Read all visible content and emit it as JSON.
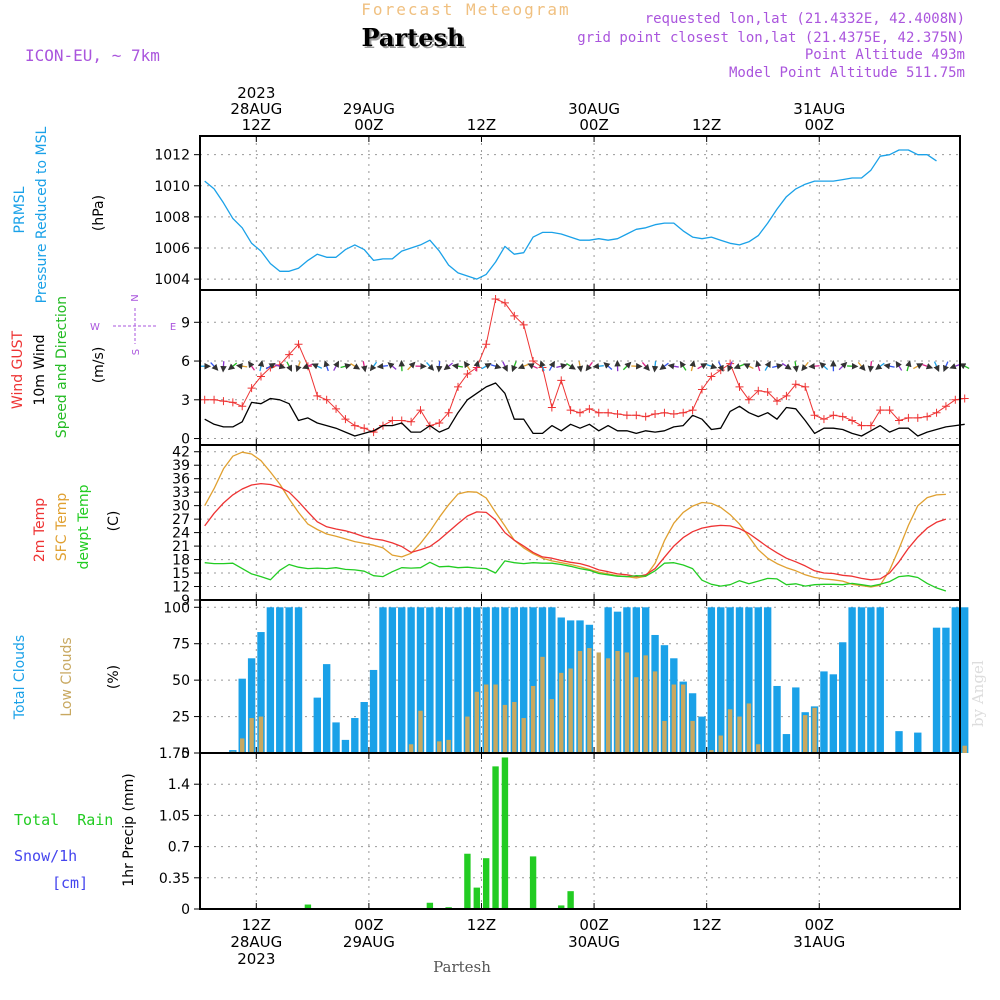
{
  "header": {
    "product": "Forecast Meteogram",
    "location": "Partesh",
    "model": "ICON-EU, ~ 7km",
    "requested": "requested lon,lat (21.4332E, 42.4008N)",
    "grid_point": "grid point closest lon,lat (21.4375E, 42.375N)",
    "point_altitude": "Point Altitude 493m",
    "model_altitude": "Model Point Altitude 511.75m",
    "credit": "by Angel",
    "footer_location": "Partesh"
  },
  "time_axis": {
    "hours_per_step": 1,
    "start": "2023-08-28 06Z",
    "top_labels": [
      {
        "hour": 6,
        "lines": [
          "2023",
          "28AUG",
          "12Z"
        ]
      },
      {
        "hour": 18,
        "lines": [
          "29AUG",
          "00Z"
        ]
      },
      {
        "hour": 30,
        "lines": [
          "12Z"
        ]
      },
      {
        "hour": 42,
        "lines": [
          "30AUG",
          "00Z"
        ]
      },
      {
        "hour": 54,
        "lines": [
          "12Z"
        ]
      },
      {
        "hour": 66,
        "lines": [
          "31AUG",
          "00Z"
        ]
      }
    ],
    "bottom_labels": [
      {
        "hour": 6,
        "lines": [
          "12Z",
          "28AUG",
          "2023"
        ]
      },
      {
        "hour": 18,
        "lines": [
          "00Z",
          "29AUG"
        ]
      },
      {
        "hour": 30,
        "lines": [
          "12Z"
        ]
      },
      {
        "hour": 42,
        "lines": [
          "00Z",
          "30AUG"
        ]
      },
      {
        "hour": 54,
        "lines": [
          "12Z"
        ]
      },
      {
        "hour": 66,
        "lines": [
          "00Z",
          "31AUG"
        ]
      }
    ]
  },
  "colors": {
    "pressure": "#1aa1e8",
    "gust": "#ee3333",
    "wind": "#000000",
    "direction": "#22bb22",
    "t2m": "#ee3333",
    "sfc": "#e0a030",
    "dewpt": "#22cc22",
    "total_clouds": "#1aa1e8",
    "low_clouds": "#c8a860",
    "rain": "#22cc22",
    "snow": "#4444ee",
    "title_faint": "#f0c080",
    "meta": "#aa55dd",
    "grid": "#999999"
  },
  "chart_data": [
    {
      "type": "line",
      "panel": "pressure",
      "ylabel_lines": [
        "PRMSL",
        "Pressure Reduced to MSL"
      ],
      "unit": "(hPa)",
      "ylim": [
        1003.3,
        1013.2
      ],
      "yticks": [
        1004,
        1006,
        1008,
        1010,
        1012
      ],
      "grid": true,
      "series": [
        {
          "name": "PRMSL",
          "values": [
            1010.3,
            1009.8,
            1008.9,
            1007.9,
            1007.3,
            1006.3,
            1005.8,
            1005.0,
            1004.5,
            1004.5,
            1004.7,
            1005.2,
            1005.6,
            1005.4,
            1005.4,
            1005.9,
            1006.2,
            1005.9,
            1005.2,
            1005.3,
            1005.3,
            1005.8,
            1006.0,
            1006.2,
            1006.5,
            1005.8,
            1004.9,
            1004.4,
            1004.2,
            1004.0,
            1004.3,
            1005.1,
            1006.1,
            1005.6,
            1005.7,
            1006.7,
            1007.0,
            1007.0,
            1006.9,
            1006.7,
            1006.5,
            1006.5,
            1006.6,
            1006.5,
            1006.6,
            1006.9,
            1007.2,
            1007.3,
            1007.5,
            1007.6,
            1007.6,
            1007.1,
            1006.7,
            1006.6,
            1006.7,
            1006.5,
            1006.3,
            1006.2,
            1006.4,
            1006.8,
            1007.6,
            1008.5,
            1009.3,
            1009.8,
            1010.1,
            1010.3,
            1010.3,
            1010.3,
            1010.4,
            1010.5,
            1010.5,
            1011.0,
            1011.9,
            1012.0,
            1012.3,
            1012.3,
            1012.0,
            1012.0,
            1011.6
          ]
        }
      ]
    },
    {
      "type": "line",
      "panel": "wind",
      "ylabel_lines": [
        "Wind GUST",
        "10m Wind",
        "Speed and Direction"
      ],
      "unit": "(m/s)",
      "compass": {
        "n": "N",
        "s": "S",
        "w": "W",
        "e": "E"
      },
      "ylim": [
        -0.5,
        11.5
      ],
      "yticks": [
        0,
        3,
        6,
        9
      ],
      "grid": true,
      "series": [
        {
          "name": "Wind GUST",
          "values": [
            3.0,
            3.0,
            2.9,
            2.8,
            2.5,
            3.9,
            4.8,
            5.5,
            5.7,
            6.5,
            7.3,
            5.6,
            3.3,
            3.0,
            2.3,
            1.5,
            1.0,
            0.8,
            0.5,
            1.0,
            1.4,
            1.4,
            1.3,
            2.2,
            1.0,
            1.2,
            2.0,
            4.0,
            5.0,
            5.5,
            7.3,
            10.8,
            10.5,
            9.5,
            8.8,
            6.0,
            5.5,
            2.4,
            4.5,
            2.2,
            2.0,
            2.3,
            2.0,
            2.0,
            1.9,
            1.8,
            1.8,
            1.7,
            1.9,
            2.0,
            1.9,
            2.0,
            2.2,
            3.8,
            4.8,
            5.3,
            5.8,
            4.0,
            3.0,
            3.7,
            3.6,
            2.9,
            3.3,
            4.2,
            4.0,
            1.8,
            1.5,
            1.8,
            1.7,
            1.4,
            1.0,
            1.0,
            2.2,
            2.2,
            1.4,
            1.6,
            1.6,
            1.7,
            2.0,
            2.5,
            3.0,
            3.1
          ]
        },
        {
          "name": "10m Wind",
          "values": [
            1.5,
            1.1,
            0.9,
            0.9,
            1.3,
            2.8,
            2.7,
            3.1,
            3.0,
            2.7,
            1.4,
            1.6,
            1.2,
            1.0,
            0.8,
            0.5,
            0.2,
            0.4,
            0.6,
            1.0,
            1.0,
            1.2,
            0.5,
            0.5,
            1.0,
            0.5,
            0.8,
            2.0,
            3.0,
            3.5,
            4.0,
            4.3,
            3.5,
            1.5,
            1.5,
            0.4,
            0.4,
            1.0,
            0.6,
            1.1,
            0.8,
            1.1,
            0.6,
            1.0,
            0.6,
            0.6,
            0.4,
            0.6,
            0.5,
            0.6,
            0.9,
            1.0,
            1.8,
            1.5,
            0.7,
            0.8,
            2.1,
            2.5,
            2.0,
            1.7,
            2.0,
            1.5,
            2.4,
            2.3,
            1.4,
            0.4,
            0.8,
            0.8,
            0.7,
            0.4,
            0.2,
            0.6,
            1.0,
            0.5,
            0.8,
            0.8,
            0.2,
            0.5,
            0.7,
            0.9,
            1.0,
            1.1
          ]
        }
      ]
    },
    {
      "type": "line",
      "panel": "temperature",
      "ylabel_lines": [
        "2m Temp",
        "SFC Temp",
        "dewpt Temp"
      ],
      "unit": "(C)",
      "ylim": [
        9,
        43.5
      ],
      "yticks": [
        9,
        12,
        15,
        18,
        21,
        24,
        27,
        30,
        33,
        36,
        39,
        42
      ],
      "grid": true,
      "series": [
        {
          "name": "2m Temp",
          "values": [
            25.5,
            28.3,
            30.6,
            32.4,
            33.7,
            34.6,
            34.9,
            34.7,
            34.1,
            33.0,
            30.9,
            28.6,
            26.4,
            25.3,
            24.8,
            24.4,
            23.8,
            23.1,
            22.6,
            22.3,
            21.7,
            20.9,
            19.6,
            20.2,
            20.9,
            22.4,
            24.2,
            26.0,
            27.7,
            28.6,
            28.5,
            26.8,
            24.0,
            22.3,
            21.0,
            19.6,
            18.6,
            18.3,
            17.8,
            17.4,
            17.1,
            16.5,
            15.7,
            15.3,
            14.8,
            14.6,
            14.2,
            14.6,
            16.0,
            18.5,
            21.0,
            22.9,
            24.2,
            25.0,
            25.4,
            25.6,
            25.5,
            24.9,
            23.8,
            22.3,
            20.8,
            19.5,
            18.3,
            17.5,
            16.6,
            15.5,
            15.0,
            14.9,
            14.5,
            14.3,
            13.8,
            13.5,
            13.7,
            15.0,
            17.5,
            20.5,
            23.0,
            25.0,
            26.3,
            27.0
          ]
        },
        {
          "name": "SFC Temp",
          "values": [
            30.0,
            33.8,
            38.2,
            41.0,
            41.9,
            41.5,
            40.0,
            37.5,
            34.8,
            31.5,
            28.5,
            25.9,
            24.7,
            23.7,
            23.2,
            22.6,
            22.0,
            21.6,
            21.2,
            20.6,
            19.0,
            18.6,
            19.4,
            21.6,
            24.3,
            27.4,
            30.2,
            32.6,
            33.1,
            33.0,
            31.7,
            28.5,
            25.5,
            22.3,
            20.6,
            19.3,
            18.3,
            17.7,
            17.3,
            16.9,
            16.4,
            15.8,
            15.2,
            14.8,
            14.4,
            14.2,
            13.9,
            14.3,
            17.2,
            22.2,
            26.1,
            28.5,
            29.9,
            30.7,
            30.5,
            29.6,
            28.0,
            25.9,
            23.1,
            20.2,
            18.3,
            17.1,
            16.2,
            15.5,
            14.6,
            14.0,
            13.7,
            13.5,
            13.2,
            12.5,
            12.2,
            11.9,
            12.3,
            15.6,
            20.4,
            25.6,
            30.0,
            31.8,
            32.4,
            32.5
          ]
        },
        {
          "name": "dewpt Temp",
          "values": [
            17.3,
            17.1,
            17.1,
            17.2,
            16.0,
            14.8,
            14.2,
            13.5,
            15.6,
            16.9,
            16.3,
            16.0,
            16.1,
            16.0,
            16.2,
            15.8,
            15.7,
            15.4,
            14.4,
            14.2,
            15.3,
            16.2,
            16.1,
            16.2,
            17.4,
            16.4,
            16.5,
            16.2,
            16.3,
            16.1,
            16.0,
            15.0,
            17.7,
            17.3,
            17.1,
            17.3,
            17.2,
            17.2,
            16.9,
            16.5,
            16.0,
            15.6,
            14.9,
            14.6,
            14.3,
            14.2,
            14.4,
            14.3,
            15.5,
            17.2,
            17.3,
            16.8,
            16.0,
            13.4,
            12.5,
            12.1,
            12.4,
            13.3,
            12.6,
            13.2,
            13.8,
            13.7,
            12.4,
            12.6,
            12.1,
            12.4,
            12.5,
            12.5,
            12.4,
            12.7,
            12.4,
            12.1,
            12.5,
            13.1,
            14.2,
            14.4,
            14.0,
            12.7,
            11.7,
            11.0
          ]
        }
      ]
    },
    {
      "type": "bar",
      "panel": "clouds",
      "ylabel_lines": [
        "Total Clouds",
        "Low Clouds"
      ],
      "unit": "(%)",
      "ylim": [
        0,
        105
      ],
      "yticks": [
        0,
        25,
        50,
        75,
        100
      ],
      "grid": true,
      "series": [
        {
          "name": "Total Clouds",
          "values": [
            0,
            0,
            0,
            2,
            51,
            65,
            83,
            100,
            100,
            100,
            100,
            0,
            38,
            61,
            21,
            9,
            24,
            35,
            57,
            100,
            100,
            100,
            100,
            100,
            100,
            100,
            100,
            100,
            100,
            100,
            100,
            100,
            100,
            100,
            100,
            100,
            100,
            100,
            93,
            91,
            91,
            88,
            0,
            100,
            97,
            100,
            100,
            100,
            81,
            74,
            65,
            49,
            41,
            25,
            100,
            100,
            100,
            100,
            100,
            100,
            100,
            46,
            13,
            45,
            28,
            32,
            56,
            54,
            76,
            100,
            100,
            100,
            100,
            0,
            15,
            0,
            14,
            0,
            86,
            86,
            100,
            100
          ]
        },
        {
          "name": "Low Clouds",
          "values": [
            0,
            0,
            0,
            1,
            10,
            24,
            25,
            0,
            0,
            0,
            0,
            0,
            0,
            0,
            0,
            0,
            0,
            0,
            0,
            0,
            0,
            0,
            6,
            29,
            0,
            8,
            9,
            0,
            25,
            42,
            47,
            47,
            33,
            35,
            24,
            46,
            66,
            37,
            55,
            58,
            70,
            72,
            69,
            65,
            70,
            69,
            52,
            67,
            56,
            22,
            47,
            47,
            22,
            0,
            2,
            12,
            30,
            25,
            34,
            6,
            0,
            0,
            0,
            0,
            26,
            31,
            0,
            0,
            0,
            0,
            0,
            0,
            0,
            0,
            0,
            0,
            0,
            0,
            0,
            0,
            0,
            5
          ]
        }
      ]
    },
    {
      "type": "bar",
      "panel": "precip",
      "legend_lines": [
        "Total  Rain",
        "Snow/1h",
        "[cm]"
      ],
      "ylabel": "1hr Precip (mm)",
      "ylim": [
        0,
        1.75
      ],
      "yticks": [
        0,
        0.35,
        0.7,
        1.05,
        1.4,
        1.75
      ],
      "ytick_labels": [
        "0",
        "0.35",
        "0.7",
        "1.05",
        "1.4",
        "1.75"
      ],
      "grid": true,
      "series": [
        {
          "name": "Total Rain",
          "values": [
            0,
            0,
            0,
            0,
            0,
            0,
            0,
            0,
            0.01,
            0,
            0,
            0.05,
            0,
            0,
            0,
            0,
            0,
            0,
            0,
            0,
            0,
            0,
            0,
            0,
            0.07,
            0,
            0.02,
            0,
            0.62,
            0.24,
            0.57,
            1.6,
            1.7,
            0,
            0,
            0.59,
            0,
            0.01,
            0.04,
            0.2,
            0,
            0,
            0,
            0,
            0,
            0,
            0,
            0,
            0,
            0,
            0,
            0,
            0,
            0,
            0,
            0,
            0,
            0,
            0,
            0,
            0,
            0,
            0,
            0,
            0,
            0,
            0,
            0,
            0,
            0,
            0,
            0,
            0,
            0,
            0,
            0,
            0,
            0,
            0,
            0,
            0,
            0
          ]
        }
      ]
    }
  ]
}
